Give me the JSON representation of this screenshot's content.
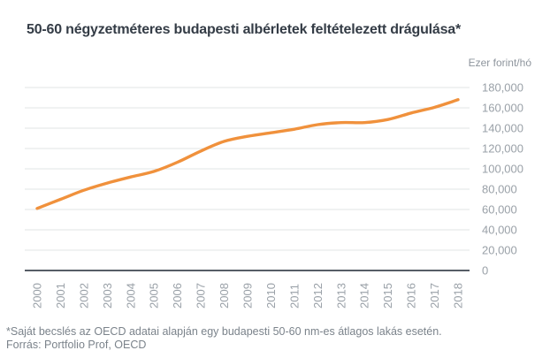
{
  "title": "50-60 négyzetméteres budapesti albérletek feltételezett drágulása*",
  "axis_unit_label": "Ezer forint/hó",
  "footnote": {
    "line1": "*Saját becslés az OECD adatai alapján egy budapesti 50-60 nm-es átlagos lakás esetén.",
    "line2": "Forrás: Portfolio Prof, OECD"
  },
  "colors": {
    "line": "#f0913c",
    "grid": "#e2e4e6",
    "axis": "#565d66",
    "tick_label": "#9aa1a8",
    "title": "#343c46",
    "footnote": "#7b838b",
    "unit_label": "#8e959d",
    "background": "#ffffff"
  },
  "chart_data": {
    "type": "line",
    "title": "50-60 négyzetméteres budapesti albérletek feltételezett drágulása*",
    "xlabel": "",
    "ylabel": "Ezer forint/hó",
    "ylim": [
      0,
      180000
    ],
    "y_tick_step": 20000,
    "grid": true,
    "legend": "none",
    "x": [
      2000,
      2001,
      2002,
      2003,
      2004,
      2005,
      2006,
      2007,
      2008,
      2009,
      2010,
      2011,
      2012,
      2013,
      2014,
      2015,
      2016,
      2017,
      2018
    ],
    "x_tick_labels": [
      "2000",
      "2001",
      "2002",
      "2003",
      "2004",
      "2005",
      "2006",
      "2007",
      "2008",
      "2009",
      "2010",
      "2011",
      "2012",
      "2013",
      "2014",
      "2015",
      "2016",
      "2017",
      "2018"
    ],
    "values": [
      61000,
      70000,
      79000,
      86000,
      92000,
      97500,
      106500,
      117500,
      127000,
      132000,
      135500,
      139000,
      143500,
      145500,
      145500,
      148500,
      155000,
      160500,
      168000
    ],
    "y_tick_labels_top_to_bottom": [
      "180,000",
      "160,000",
      "140,000",
      "120,000",
      "100,000",
      "80,000",
      "60,000",
      "40,000",
      "20,000",
      "0"
    ]
  }
}
